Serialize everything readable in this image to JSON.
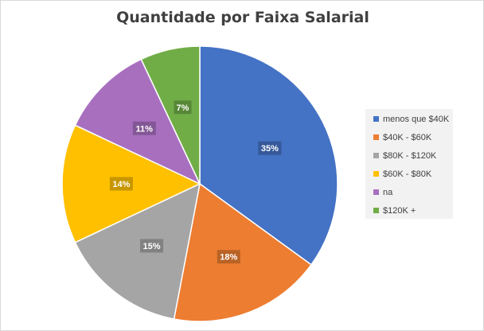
{
  "chart_data": {
    "type": "pie",
    "title": "Quantidade por Faixa Salarial",
    "categories": [
      "menos que $40K",
      "$40K - $60K",
      "$80K - $120K",
      "$60K - $80K",
      "na",
      "$120K +"
    ],
    "values": [
      35,
      18,
      15,
      14,
      11,
      7
    ],
    "value_labels": [
      "35%",
      "18%",
      "15%",
      "14%",
      "11%",
      "7%"
    ],
    "unit": "%",
    "colors": [
      "#4472c4",
      "#ed7d31",
      "#a5a5a5",
      "#ffc000",
      "#a86fbf",
      "#70ad47"
    ],
    "legend_position": "right"
  }
}
